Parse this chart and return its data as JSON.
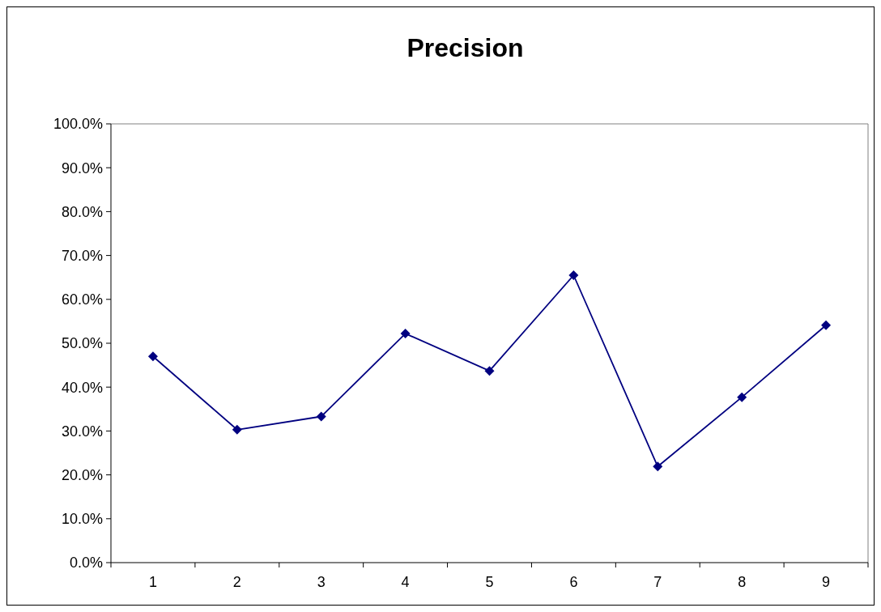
{
  "chart_data": {
    "type": "line",
    "title": "Precision",
    "categories": [
      "1",
      "2",
      "3",
      "4",
      "5",
      "6",
      "7",
      "8",
      "9"
    ],
    "series": [
      {
        "color": "#000080",
        "values": [
          0.47,
          0.303,
          0.333,
          0.522,
          0.437,
          0.655,
          0.219,
          0.377,
          0.541
        ]
      }
    ],
    "ylim": [
      0,
      1
    ],
    "yticks": [
      {
        "value": 0,
        "label": "0.0%"
      },
      {
        "value": 0.1,
        "label": "10.0%"
      },
      {
        "value": 0.2,
        "label": "20.0%"
      },
      {
        "value": 0.3,
        "label": "30.0%"
      },
      {
        "value": 0.4,
        "label": "40.0%"
      },
      {
        "value": 0.5,
        "label": "50.0%"
      },
      {
        "value": 0.6,
        "label": "60.0%"
      },
      {
        "value": 0.7,
        "label": "70.0%"
      },
      {
        "value": 0.8,
        "label": "80.0%"
      },
      {
        "value": 0.9,
        "label": "90.0%"
      },
      {
        "value": 1,
        "label": "100.0%"
      }
    ],
    "marker": "diamond",
    "line_style": "solid",
    "grid": false
  }
}
